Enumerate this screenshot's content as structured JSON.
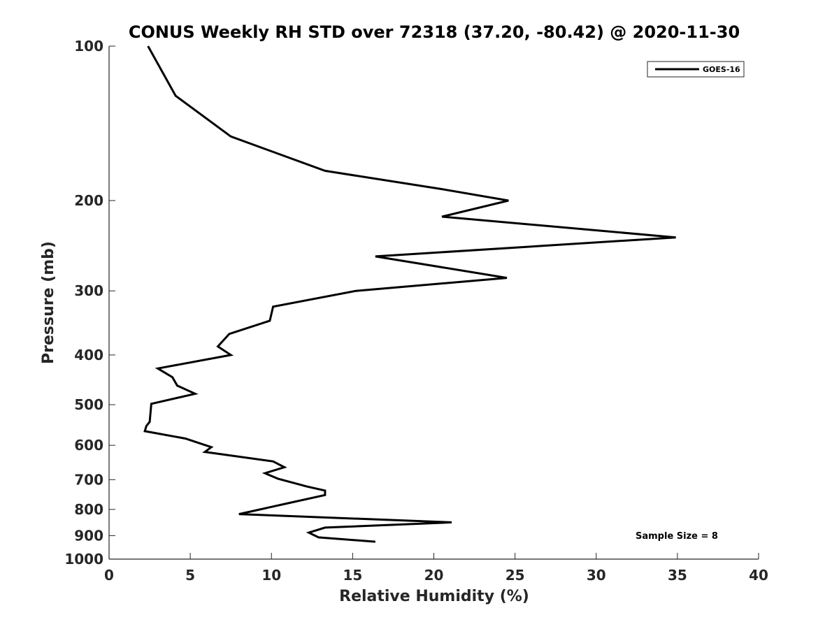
{
  "chart_data": {
    "type": "line",
    "title": "CONUS Weekly RH STD over 72318 (37.20, -80.42) @ 2020-11-30",
    "xlabel": "Relative Humidity (%)",
    "ylabel": "Pressure (mb)",
    "xlim": [
      0,
      40
    ],
    "ylim": [
      100,
      1000
    ],
    "y_scale": "log",
    "y_reversed": true,
    "xticks": [
      0,
      5,
      10,
      15,
      20,
      25,
      30,
      35,
      40
    ],
    "yticks": [
      100,
      200,
      300,
      400,
      500,
      600,
      700,
      800,
      900,
      1000
    ],
    "grid": false,
    "legend_position": "top-right",
    "series": [
      {
        "name": "GOES-16",
        "color": "#000000",
        "points": [
          [
            2.4,
            100
          ],
          [
            4.1,
            125
          ],
          [
            7.5,
            150
          ],
          [
            13.3,
            175
          ],
          [
            20.5,
            190
          ],
          [
            24.6,
            200
          ],
          [
            20.5,
            215
          ],
          [
            34.9,
            236
          ],
          [
            16.4,
            257
          ],
          [
            24.5,
            283
          ],
          [
            15.2,
            300
          ],
          [
            10.1,
            322
          ],
          [
            9.9,
            343
          ],
          [
            7.4,
            364
          ],
          [
            6.7,
            385
          ],
          [
            7.5,
            400
          ],
          [
            3.0,
            425
          ],
          [
            3.9,
            442
          ],
          [
            4.2,
            459
          ],
          [
            5.3,
            476
          ],
          [
            2.6,
            498
          ],
          [
            2.5,
            540
          ],
          [
            2.3,
            550
          ],
          [
            2.2,
            563
          ],
          [
            4.7,
            582
          ],
          [
            6.3,
            605
          ],
          [
            5.9,
            618
          ],
          [
            10.1,
            645
          ],
          [
            10.8,
            662
          ],
          [
            9.6,
            680
          ],
          [
            10.4,
            697
          ],
          [
            12.2,
            722
          ],
          [
            13.3,
            735
          ],
          [
            13.3,
            750
          ],
          [
            11.1,
            777
          ],
          [
            8.0,
            817
          ],
          [
            21.1,
            848
          ],
          [
            13.3,
            868
          ],
          [
            12.3,
            888
          ],
          [
            12.9,
            907
          ],
          [
            16.4,
            925
          ]
        ]
      }
    ],
    "annotation": "Sample Size = 8"
  }
}
